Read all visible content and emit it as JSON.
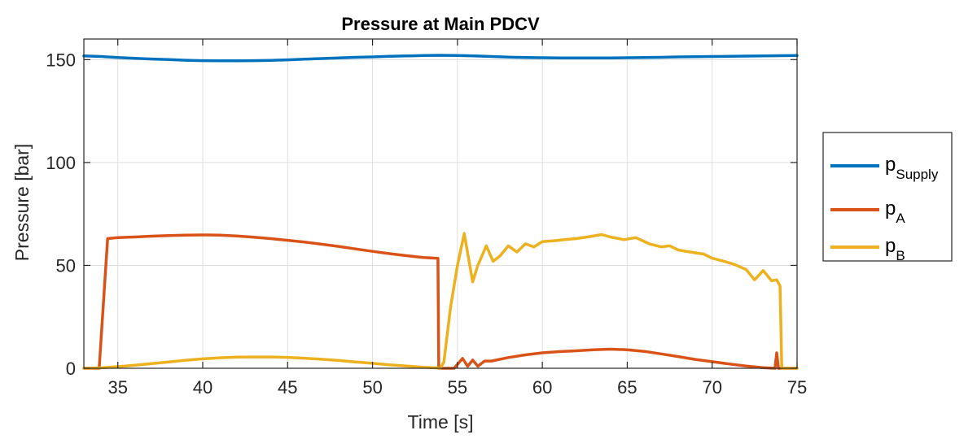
{
  "chart_data": {
    "type": "line",
    "title": "Pressure at Main PDCV",
    "xlabel": "Time [s]",
    "ylabel": "Pressure [bar]",
    "xlim": [
      33,
      75
    ],
    "ylim": [
      0,
      160
    ],
    "xticks": [
      35,
      40,
      45,
      50,
      55,
      60,
      65,
      70,
      75
    ],
    "yticks": [
      0,
      50,
      100,
      150
    ],
    "grid": true,
    "legend_position": "outside-right",
    "series": [
      {
        "name": "p",
        "name_subscript": "Supply",
        "color": "#0072BD",
        "x": [
          33,
          34,
          35,
          36,
          37,
          38,
          39,
          40,
          41,
          42,
          43,
          44,
          45,
          46,
          47,
          48,
          49,
          50,
          51,
          52,
          53,
          54,
          55,
          56,
          57,
          58,
          59,
          60,
          61,
          62,
          63,
          64,
          65,
          66,
          67,
          68,
          69,
          70,
          71,
          72,
          73,
          74,
          75
        ],
        "y": [
          151.8,
          151.5,
          151.0,
          150.6,
          150.3,
          150.0,
          149.7,
          149.5,
          149.4,
          149.4,
          149.5,
          149.6,
          149.9,
          150.2,
          150.5,
          150.8,
          151.1,
          151.3,
          151.6,
          151.8,
          152.0,
          152.1,
          152.0,
          151.8,
          151.5,
          151.2,
          151.0,
          150.9,
          150.8,
          150.8,
          150.8,
          150.8,
          150.9,
          151.0,
          151.1,
          151.3,
          151.4,
          151.5,
          151.6,
          151.7,
          151.8,
          151.9,
          152.0
        ]
      },
      {
        "name": "p",
        "name_subscript": "A",
        "color": "#D95319",
        "x": [
          33,
          33.9,
          34.4,
          35,
          36,
          37,
          38,
          39,
          40,
          41,
          42,
          43,
          44,
          45,
          46,
          47,
          48,
          49,
          50,
          51,
          52,
          53,
          53.85,
          53.9,
          54.1,
          54.8,
          55.3,
          55.6,
          55.9,
          56.2,
          56.6,
          57,
          58,
          59,
          60,
          61,
          62,
          63,
          64,
          65,
          66,
          67,
          68,
          69,
          70,
          71,
          72,
          73,
          73.7,
          73.8,
          73.9,
          74.0,
          75
        ],
        "y": [
          0,
          0,
          63,
          63.5,
          63.8,
          64.2,
          64.5,
          64.7,
          64.8,
          64.7,
          64.3,
          63.7,
          63.0,
          62.2,
          61.3,
          60.3,
          59.2,
          58.0,
          56.8,
          55.7,
          54.7,
          53.8,
          53.4,
          0,
          0,
          0,
          4.8,
          1.0,
          4.0,
          1.0,
          3.5,
          3.5,
          5.2,
          6.5,
          7.5,
          8.1,
          8.5,
          9.0,
          9.3,
          9.0,
          8.2,
          7.0,
          5.7,
          4.3,
          3.2,
          2.1,
          1.1,
          0.3,
          0,
          7.5,
          0,
          0,
          0
        ]
      },
      {
        "name": "p",
        "name_subscript": "B",
        "color": "#EDB120",
        "x": [
          33,
          34,
          35,
          36,
          37,
          38,
          39,
          40,
          41,
          42,
          43,
          44,
          45,
          46,
          47,
          48,
          49,
          50,
          51,
          52,
          53,
          54,
          54.2,
          54.6,
          55.0,
          55.4,
          55.9,
          56.2,
          56.7,
          57.1,
          57.5,
          58,
          58.5,
          59,
          59.5,
          60,
          60.7,
          61.3,
          62,
          62.8,
          63.5,
          64,
          64.8,
          65.5,
          66.3,
          67,
          67.5,
          68,
          68.7,
          69.5,
          70,
          70.7,
          71.3,
          72,
          72.5,
          73,
          73.5,
          73.8,
          74.0,
          74.1,
          75
        ],
        "y": [
          0,
          0.2,
          0.8,
          1.5,
          2.3,
          3.1,
          3.9,
          4.6,
          5.1,
          5.4,
          5.5,
          5.5,
          5.3,
          4.9,
          4.4,
          3.8,
          3.1,
          2.4,
          1.7,
          1.1,
          0.5,
          0.1,
          3.0,
          30.0,
          50.0,
          65.5,
          42.0,
          50.0,
          59.5,
          52.0,
          54.5,
          59.5,
          56.5,
          60.5,
          59.0,
          61.5,
          62.0,
          62.5,
          63.0,
          64.0,
          65.0,
          63.8,
          62.5,
          63.5,
          60.5,
          59.0,
          59.5,
          57.5,
          56.5,
          55.5,
          53.5,
          52.0,
          50.5,
          48.0,
          43.0,
          47.5,
          42.5,
          43.0,
          40.0,
          0,
          0
        ]
      }
    ]
  },
  "colors": {
    "axis": "#262626",
    "grid": "#DFDFDF",
    "background": "#FFFFFF"
  }
}
